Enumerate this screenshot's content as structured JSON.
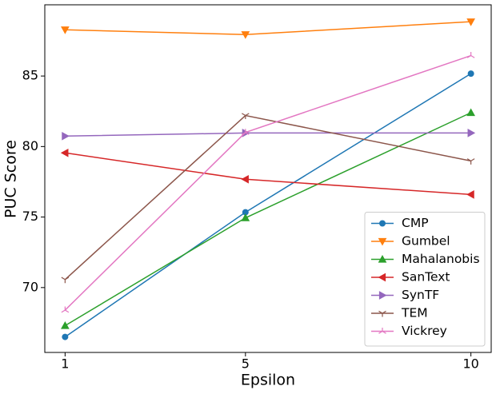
{
  "chart_data": {
    "type": "line",
    "x_label": "Epsilon",
    "y_label": "PUC Score",
    "x": [
      1,
      5,
      10
    ],
    "xlim": [
      0.55,
      10.45
    ],
    "xticks": [
      1,
      5,
      10
    ],
    "ylim": [
      65.4,
      90.05
    ],
    "yticks": [
      70,
      75,
      80,
      85
    ],
    "legend": "lower right",
    "series": [
      {
        "name": "CMP",
        "color": "#1f77b4",
        "marker": "o",
        "values": [
          66.5,
          75.34,
          85.17
        ]
      },
      {
        "name": "Gumbel",
        "color": "#ff7f0e",
        "marker": "v",
        "values": [
          88.28,
          87.94,
          88.85
        ]
      },
      {
        "name": "Mahalanobis",
        "color": "#2ca02c",
        "marker": "^",
        "values": [
          67.3,
          74.94,
          82.4
        ]
      },
      {
        "name": "SanText",
        "color": "#d62728",
        "marker": "<",
        "values": [
          79.55,
          77.68,
          76.6
        ]
      },
      {
        "name": "SynTF",
        "color": "#9467bd",
        "marker": ">",
        "values": [
          80.74,
          80.96,
          80.96
        ]
      },
      {
        "name": "TEM",
        "color": "#8c564b",
        "marker": "1",
        "values": [
          70.57,
          82.2,
          78.98
        ]
      },
      {
        "name": "Vickrey",
        "color": "#e377c2",
        "marker": "2",
        "values": [
          68.4,
          81.0,
          86.45
        ]
      }
    ]
  }
}
